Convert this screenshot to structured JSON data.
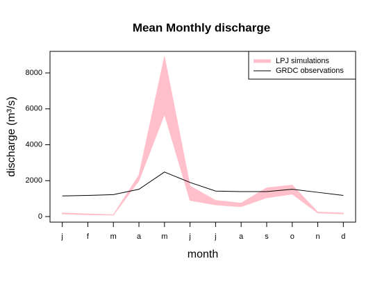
{
  "chart_data": {
    "type": "line",
    "title": "Mean Monthly discharge",
    "x_label": "month",
    "y_label": "discharge (m³/s)",
    "categories": [
      "j",
      "f",
      "m",
      "a",
      "m",
      "j",
      "j",
      "a",
      "s",
      "o",
      "n",
      "d"
    ],
    "series": [
      {
        "name": "LPJ simulations",
        "color": "#ffc0cb",
        "lower": [
          150,
          100,
          80,
          2000,
          5700,
          900,
          650,
          550,
          1050,
          1250,
          200,
          150
        ],
        "upper": [
          200,
          150,
          100,
          2300,
          8900,
          1700,
          900,
          750,
          1600,
          1750,
          250,
          200
        ]
      },
      {
        "name": "GRDC observations",
        "color": "#000000",
        "values": [
          1150,
          1180,
          1220,
          1520,
          2480,
          1900,
          1420,
          1390,
          1390,
          1520,
          1350,
          1180
        ]
      }
    ],
    "ylim": [
      -310,
      9200
    ],
    "yticks": [
      0,
      2000,
      4000,
      6000,
      8000
    ],
    "legend": "top-right"
  }
}
